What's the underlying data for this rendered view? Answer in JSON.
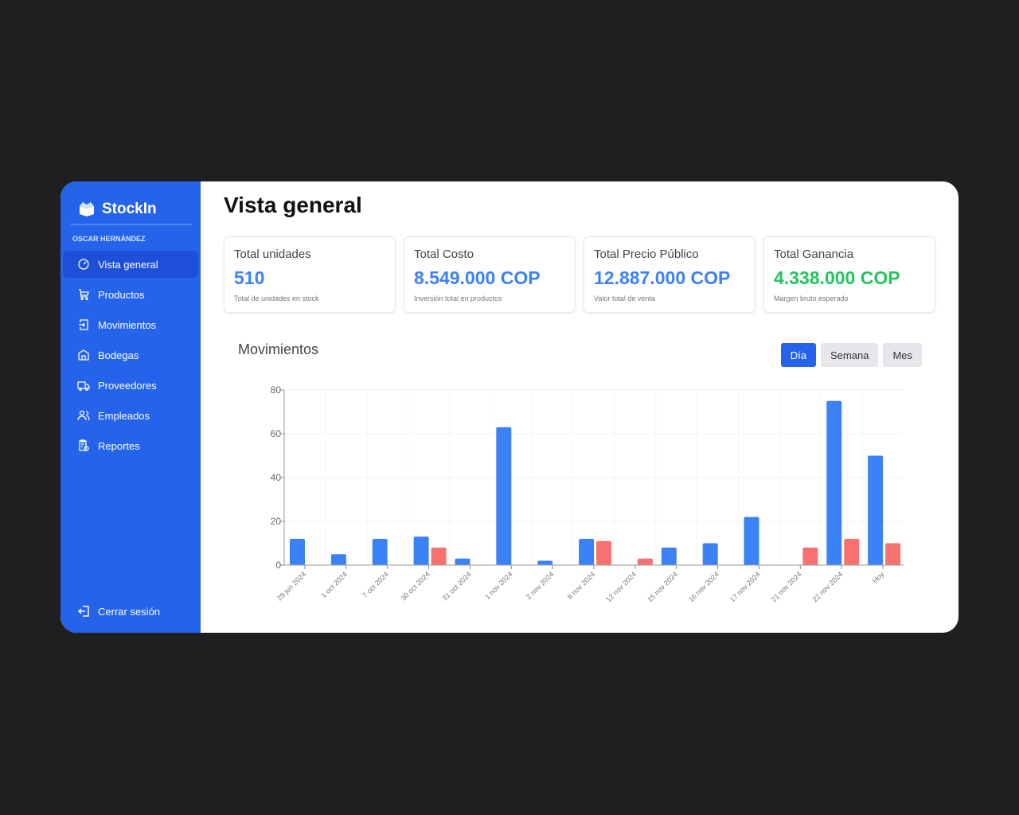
{
  "brand": "StockIn",
  "user": "OSCAR HERNÁNDEZ",
  "nav": [
    {
      "label": "Vista general",
      "icon": "gauge-icon"
    },
    {
      "label": "Productos",
      "icon": "cart-icon"
    },
    {
      "label": "Movimientos",
      "icon": "enter-icon"
    },
    {
      "label": "Bodegas",
      "icon": "warehouse-icon"
    },
    {
      "label": "Proveedores",
      "icon": "truck-icon"
    },
    {
      "label": "Empleados",
      "icon": "users-icon"
    },
    {
      "label": "Reportes",
      "icon": "report-icon"
    }
  ],
  "logout": "Cerrar sesión",
  "title": "Vista general",
  "cards": [
    {
      "title": "Total unidades",
      "value": "510",
      "sub": "Total de unidades en stock"
    },
    {
      "title": "Total Costo",
      "value": "8.549.000 COP",
      "sub": "Inversión total en productos"
    },
    {
      "title": "Total Precio Público",
      "value": "12.887.000 COP",
      "sub": "Valor total de venta"
    },
    {
      "title": "Total Ganancia",
      "value": "4.338.000 COP",
      "sub": "Margen bruto esperado"
    }
  ],
  "section": "Movimientos",
  "ranges": [
    "Día",
    "Semana",
    "Mes"
  ],
  "range_selected": "Día",
  "colors": {
    "accent": "#2563eb",
    "blue": "#3b82f6",
    "red": "#f87171",
    "green": "#22c55e"
  },
  "chart_data": {
    "type": "bar",
    "categories": [
      "29 jun 2024",
      "1 oct 2024",
      "7 oct 2024",
      "30 oct 2024",
      "31 oct 2024",
      "1 nov 2024",
      "2 nov 2024",
      "8 nov 2024",
      "12 nov 2024",
      "15 nov 2024",
      "16 nov 2024",
      "17 nov 2024",
      "21 nov 2024",
      "22 nov 2024",
      "Hoy"
    ],
    "series": [
      {
        "color": "#3b82f6",
        "values": [
          12,
          5,
          12,
          13,
          3,
          63,
          2,
          12,
          0,
          8,
          10,
          22,
          0,
          75,
          50
        ]
      },
      {
        "color": "#f87171",
        "values": [
          0,
          0,
          0,
          8,
          0,
          0,
          0,
          11,
          3,
          0,
          0,
          0,
          8,
          12,
          10
        ]
      }
    ],
    "yticks": [
      0,
      20,
      40,
      60,
      80
    ],
    "ylim": [
      0,
      80
    ],
    "grid": true
  }
}
